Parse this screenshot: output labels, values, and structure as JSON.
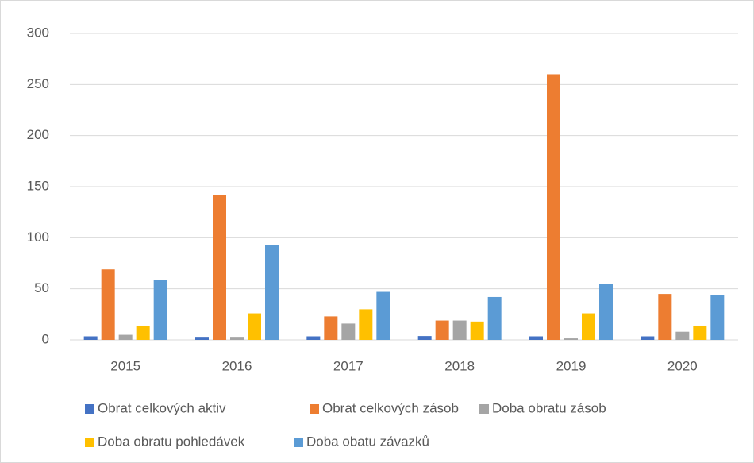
{
  "chart_data": {
    "type": "bar",
    "categories": [
      "2015",
      "2016",
      "2017",
      "2018",
      "2019",
      "2020"
    ],
    "series": [
      {
        "name": "Obrat celkových aktiv",
        "color": "#4472c4",
        "values": [
          3.5,
          3,
          3.5,
          3.8,
          3.5,
          3.5
        ]
      },
      {
        "name": "Obrat celkových zásob",
        "color": "#ed7d31",
        "values": [
          69,
          142,
          23,
          19,
          260,
          45
        ]
      },
      {
        "name": "Doba obratu zásob",
        "color": "#a5a5a5",
        "values": [
          5,
          3,
          16,
          19,
          1.5,
          8
        ]
      },
      {
        "name": "Doba obratu pohledávek",
        "color": "#ffc000",
        "values": [
          14,
          26,
          30,
          18,
          26,
          14
        ]
      },
      {
        "name": "Doba obatu závazků",
        "color": "#5b9bd5",
        "values": [
          59,
          93,
          47,
          42,
          55,
          44
        ]
      }
    ],
    "ylim": [
      0,
      300
    ],
    "yticks": [
      0,
      50,
      100,
      150,
      200,
      250,
      300
    ],
    "grid": true
  }
}
